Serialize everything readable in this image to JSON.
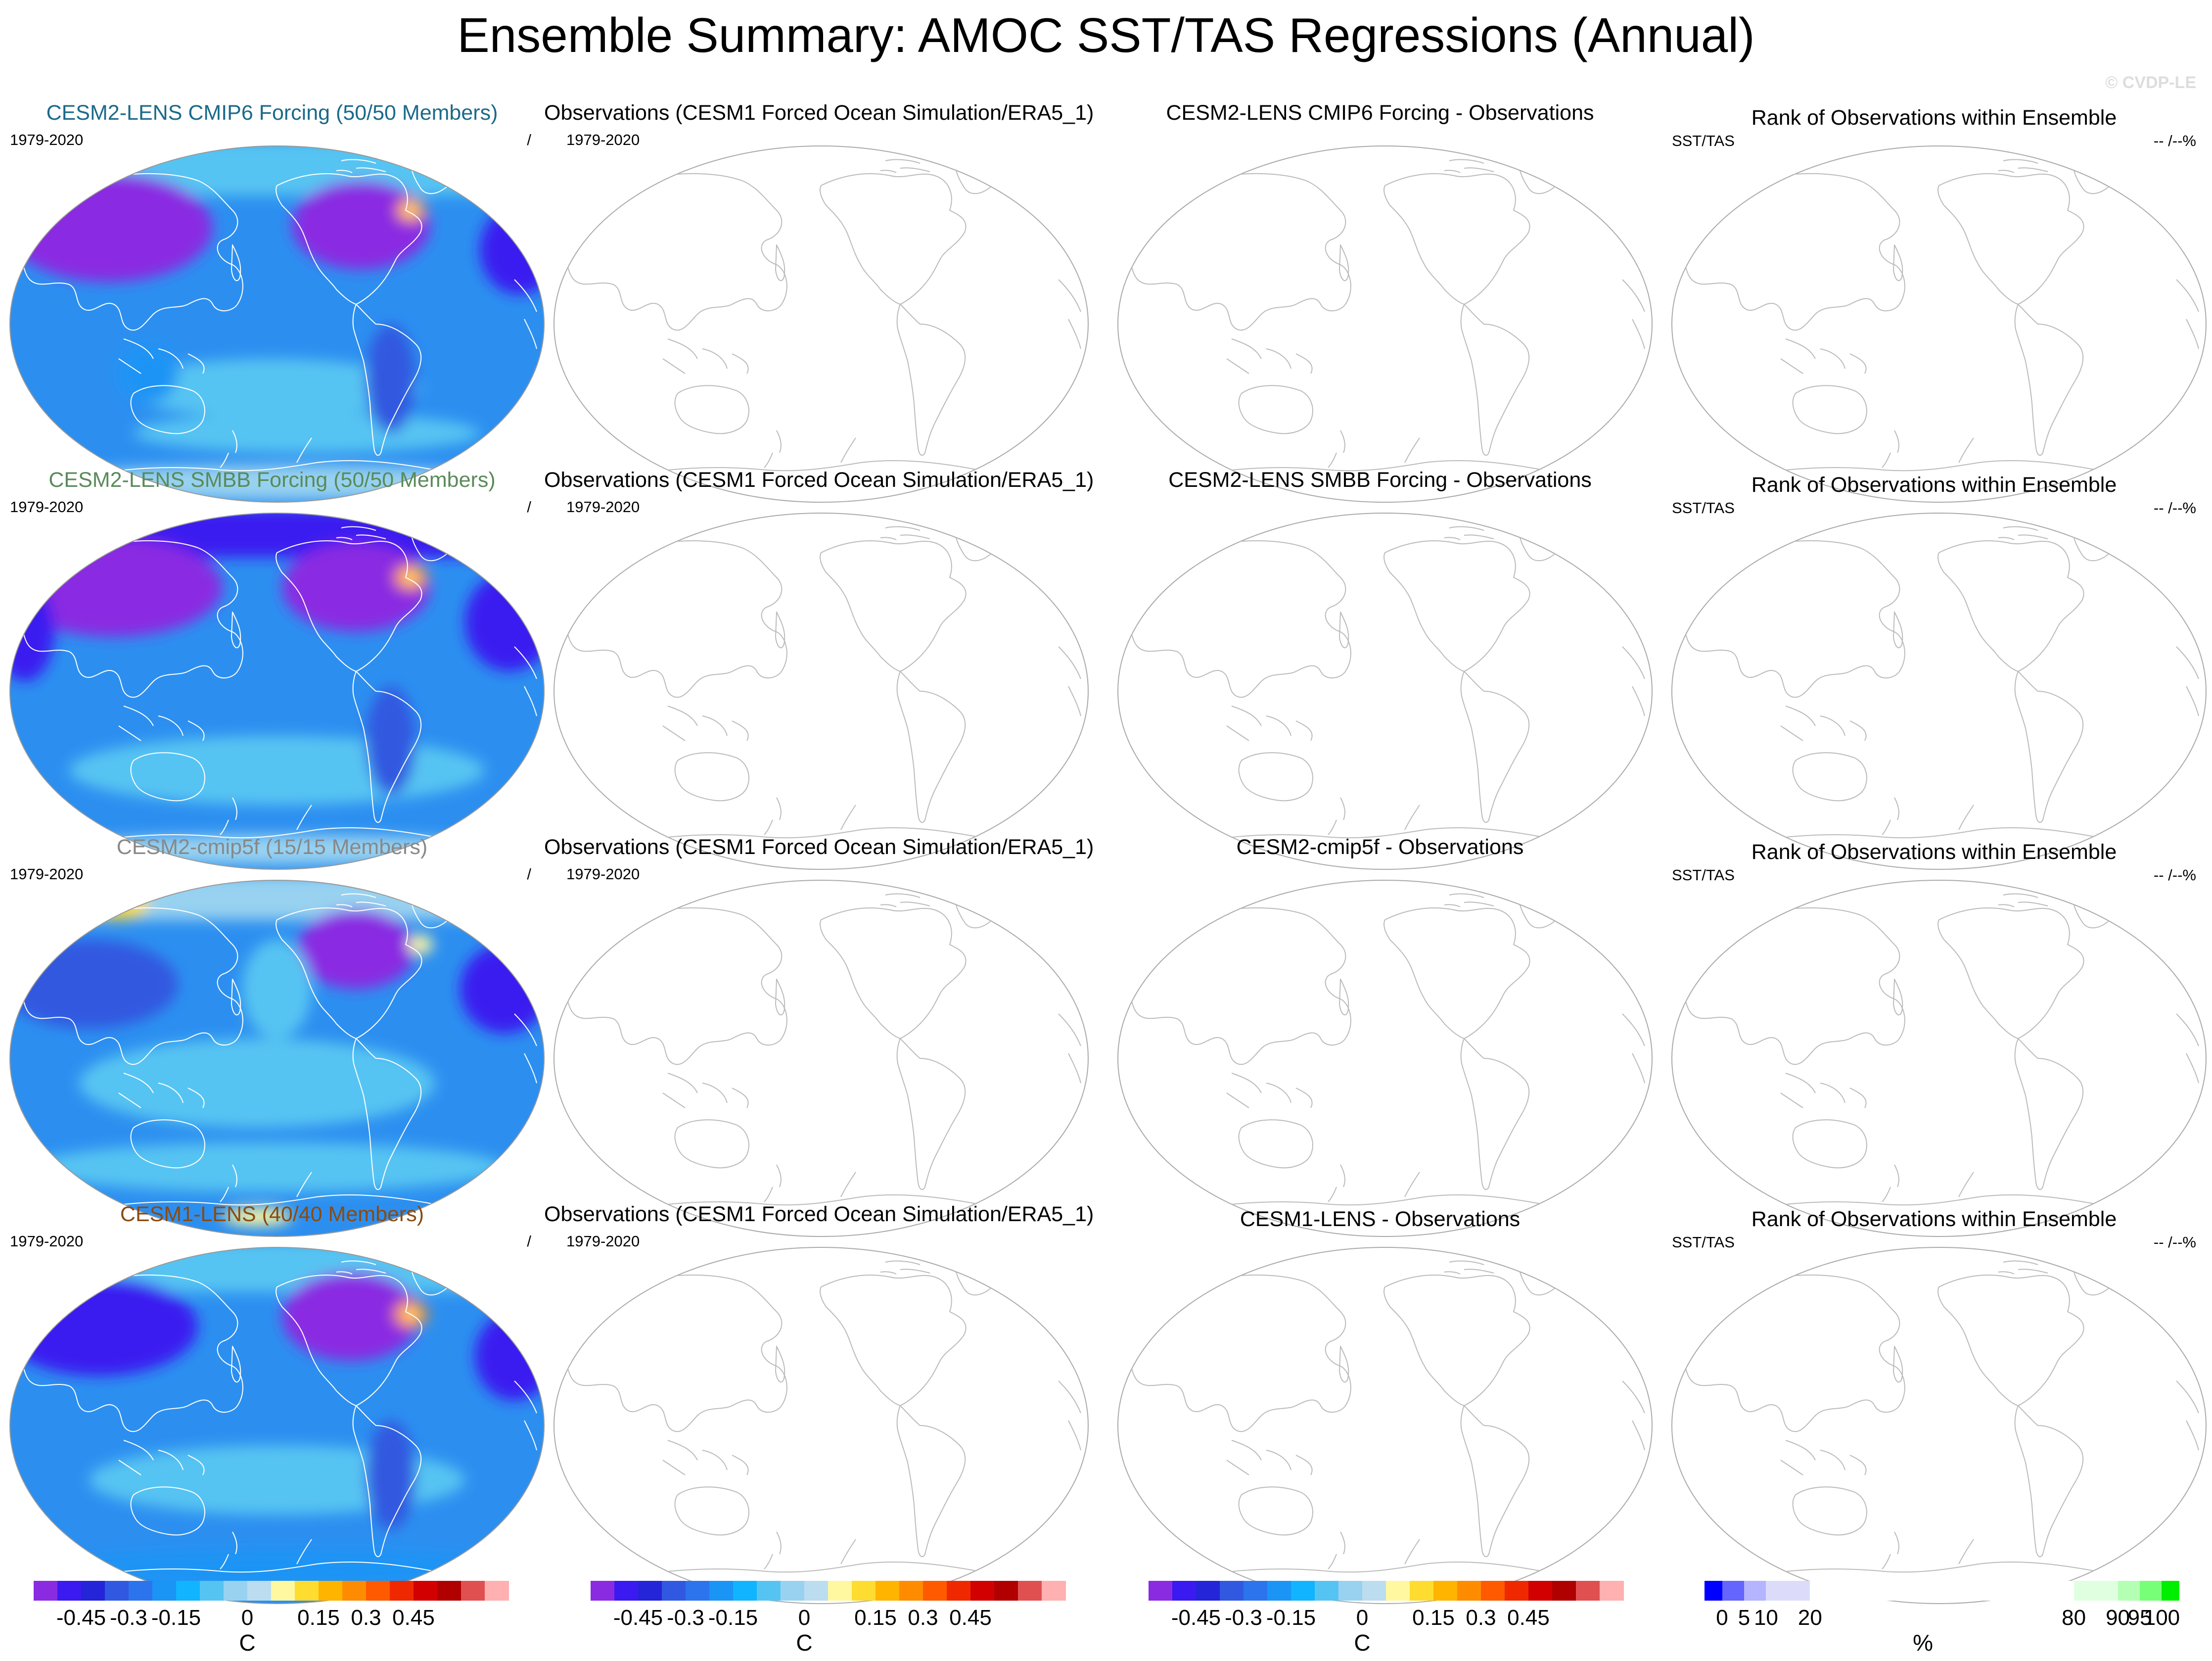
{
  "title": "Ensemble Summary: AMOC SST/TAS Regressions (Annual)",
  "watermark": "© CVDP-LE",
  "period_label": "1979-2020",
  "slash_label": "/",
  "var_label": "SST/TAS",
  "rank_pct_label": "-- /--%",
  "title_colors": [
    "#1a6a8a",
    "#5a8a5a",
    "#888888",
    "#8b4a10"
  ],
  "rows": [
    {
      "ensemble_title": "CESM2-LENS CMIP6 Forcing (50/50 Members)",
      "obs_title": "Observations (CESM1 Forced Ocean Simulation/ERA5_1)",
      "diff_title": "CESM2-LENS CMIP6 Forcing - Observations",
      "rank_title": "Rank of Observations within Ensemble"
    },
    {
      "ensemble_title": "CESM2-LENS SMBB Forcing (50/50 Members)",
      "obs_title": "Observations (CESM1 Forced Ocean Simulation/ERA5_1)",
      "diff_title": "CESM2-LENS SMBB Forcing - Observations",
      "rank_title": "Rank of Observations within Ensemble"
    },
    {
      "ensemble_title": "CESM2-cmip5f (15/15 Members)",
      "obs_title": "Observations (CESM1 Forced Ocean Simulation/ERA5_1)",
      "diff_title": "CESM2-cmip5f - Observations",
      "rank_title": "Rank of Observations within Ensemble"
    },
    {
      "ensemble_title": "CESM1-LENS (40/40 Members)",
      "obs_title": "Observations (CESM1 Forced Ocean Simulation/ERA5_1)",
      "diff_title": "CESM1-LENS - Observations",
      "rank_title": "Rank of Observations within Ensemble"
    }
  ],
  "colorbars": {
    "regression": {
      "unit": "C",
      "colors": [
        "#8a2be2",
        "#3a1af0",
        "#2424d8",
        "#3058e0",
        "#2c74ee",
        "#1a94f5",
        "#10b4ff",
        "#56c4f2",
        "#98d2f0",
        "#bcdcf0",
        "#fff8a0",
        "#ffdc30",
        "#ffb400",
        "#ff8c00",
        "#ff5a00",
        "#f02800",
        "#d20000",
        "#b00000",
        "#e05050",
        "#ffb0b0"
      ],
      "labels": [
        "-0.45",
        "-0.3",
        "-0.15",
        "0",
        "0.15",
        "0.3",
        "0.45"
      ],
      "boundary_index": [
        2,
        4,
        6,
        9,
        12,
        14,
        16
      ]
    },
    "rank": {
      "unit": "%",
      "colors": [
        "#0000ff",
        "#6464ff",
        "#b4b4ff",
        "#dcdcfa",
        "#ffffff",
        "#e0ffe0",
        "#b4ffb4",
        "#78ff78",
        "#00ee00"
      ],
      "labels": [
        "0",
        "5",
        "10",
        "20",
        "80",
        "90",
        "95",
        "100"
      ],
      "boundaries": [
        0,
        5,
        10,
        20,
        80,
        90,
        95,
        100
      ],
      "bins": [
        [
          -4,
          0
        ],
        [
          0,
          5
        ],
        [
          5,
          10
        ],
        [
          10,
          20
        ],
        [
          20,
          80
        ],
        [
          80,
          90
        ],
        [
          90,
          95
        ],
        [
          95,
          100
        ],
        [
          100,
          104
        ]
      ]
    }
  },
  "chart_data": {
    "type": "heatmap",
    "title": "Ensemble Summary: AMOC SST/TAS Regressions (Annual)",
    "variable": "SST/TAS regression on AMOC",
    "units": "C",
    "period": "1979-2020",
    "contour_levels": [
      -0.5,
      -0.45,
      -0.4,
      -0.35,
      -0.3,
      -0.25,
      -0.2,
      -0.15,
      -0.1,
      -0.05,
      0,
      0.05,
      0.1,
      0.15,
      0.2,
      0.25,
      0.3,
      0.35,
      0.4,
      0.45
    ],
    "panels": [
      {
        "row": 1,
        "name": "CESM2-LENS CMIP6 Forcing",
        "members": "50/50",
        "estimated_ranges": {
          "global_ocean": [
            -0.3,
            -0.15
          ],
          "arctic_land": [
            -0.5,
            -0.4
          ],
          "north_atlantic_subpolar": [
            0.2,
            0.4
          ]
        }
      },
      {
        "row": 2,
        "name": "CESM2-LENS SMBB Forcing",
        "members": "50/50",
        "estimated_ranges": {
          "global_ocean": [
            -0.3,
            -0.15
          ],
          "arctic_land": [
            -0.5,
            -0.4
          ],
          "north_atlantic_subpolar": [
            0.2,
            0.35
          ]
        }
      },
      {
        "row": 3,
        "name": "CESM2-cmip5f",
        "members": "15/15",
        "estimated_ranges": {
          "global_ocean": [
            -0.25,
            -0.1
          ],
          "arctic_land": [
            -0.45,
            -0.35
          ],
          "north_atlantic_subpolar": [
            0.0,
            0.15
          ],
          "siberia": [
            0.0,
            0.15
          ]
        }
      },
      {
        "row": 4,
        "name": "CESM1-LENS",
        "members": "40/40",
        "estimated_ranges": {
          "global_ocean": [
            -0.25,
            -0.15
          ],
          "arctic_land": [
            -0.45,
            -0.35
          ],
          "north_atlantic_subpolar": [
            0.25,
            0.45
          ]
        }
      }
    ],
    "observations": "no data plotted",
    "difference": "no data plotted",
    "rank": "no data plotted",
    "colorbar_ticks": [
      -0.45,
      -0.3,
      -0.15,
      0,
      0.15,
      0.3,
      0.45
    ],
    "rank_ticks_percent": [
      0,
      5,
      10,
      20,
      80,
      90,
      95,
      100
    ]
  }
}
